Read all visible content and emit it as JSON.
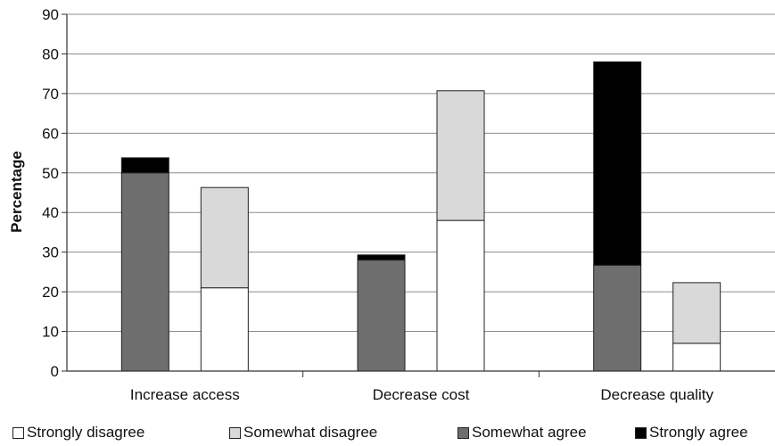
{
  "chart_data": {
    "type": "bar",
    "stacked": true,
    "ylabel": "Percentage",
    "ylim": [
      0,
      90
    ],
    "yticks": [
      0,
      10,
      20,
      30,
      40,
      50,
      60,
      70,
      80,
      90
    ],
    "grid": true,
    "categories": [
      "Increase access",
      "Decrease cost",
      "Decrease quality"
    ],
    "legend_position": "bottom",
    "series": [
      {
        "name": "Strongly disagree",
        "color": "#ffffff",
        "stack": "disagree",
        "values": [
          21,
          38,
          7
        ]
      },
      {
        "name": "Somewhat disagree",
        "color": "#d9d9d9",
        "stack": "disagree",
        "values": [
          25.3,
          32.7,
          15.3
        ]
      },
      {
        "name": "Somewhat agree",
        "color": "#6e6e6e",
        "stack": "agree",
        "values": [
          50,
          28,
          26.7
        ]
      },
      {
        "name": "Strongly agree",
        "color": "#000000",
        "stack": "agree",
        "values": [
          3.8,
          1.3,
          51.3
        ]
      }
    ]
  }
}
